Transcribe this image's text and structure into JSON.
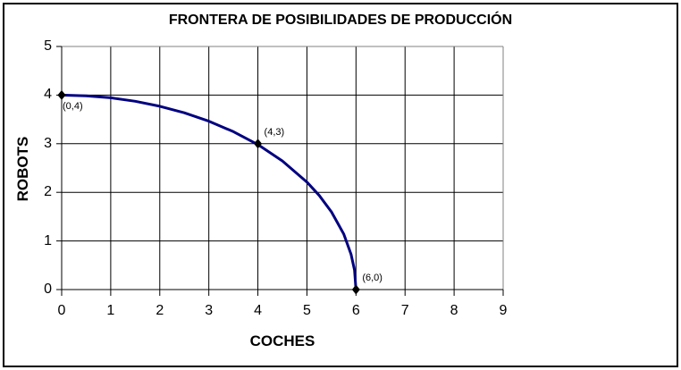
{
  "chart_data": {
    "type": "line",
    "title": "FRONTERA DE POSIBILIDADES DE PRODUCCIÓN",
    "xlabel": "COCHES",
    "ylabel": "ROBOTS",
    "xlim": [
      0,
      9
    ],
    "ylim": [
      0,
      5
    ],
    "x_ticks": [
      "0",
      "1",
      "2",
      "3",
      "4",
      "5",
      "6",
      "7",
      "8",
      "9"
    ],
    "y_ticks": [
      "0",
      "1",
      "2",
      "3",
      "4",
      "5"
    ],
    "grid": true,
    "legend": false,
    "series": [
      {
        "name": "frontera de posibilidades de producción",
        "color": "#000080",
        "x": [
          0,
          0.5,
          1,
          1.5,
          2,
          2.5,
          3,
          3.5,
          4,
          4.5,
          5,
          5.25,
          5.5,
          5.75,
          5.9,
          5.97,
          6
        ],
        "y": [
          4,
          3.986,
          3.944,
          3.873,
          3.771,
          3.636,
          3.464,
          3.249,
          2.981,
          2.646,
          2.211,
          1.936,
          1.598,
          1.143,
          0.727,
          0.399,
          0
        ]
      }
    ],
    "labeled_points": [
      {
        "x": 0,
        "y": 4,
        "label": "(0,4)",
        "label_position": "below-right"
      },
      {
        "x": 4,
        "y": 3,
        "label": "(4,3)",
        "label_position": "above-right"
      },
      {
        "x": 6,
        "y": 0,
        "label": "(6,0)",
        "label_position": "above-right"
      }
    ],
    "colors": {
      "curve": "#000080",
      "gridline": "#000000",
      "axis": "#000000",
      "plot_border": "#808080",
      "marker": "#000000",
      "background": "#ffffff"
    }
  }
}
